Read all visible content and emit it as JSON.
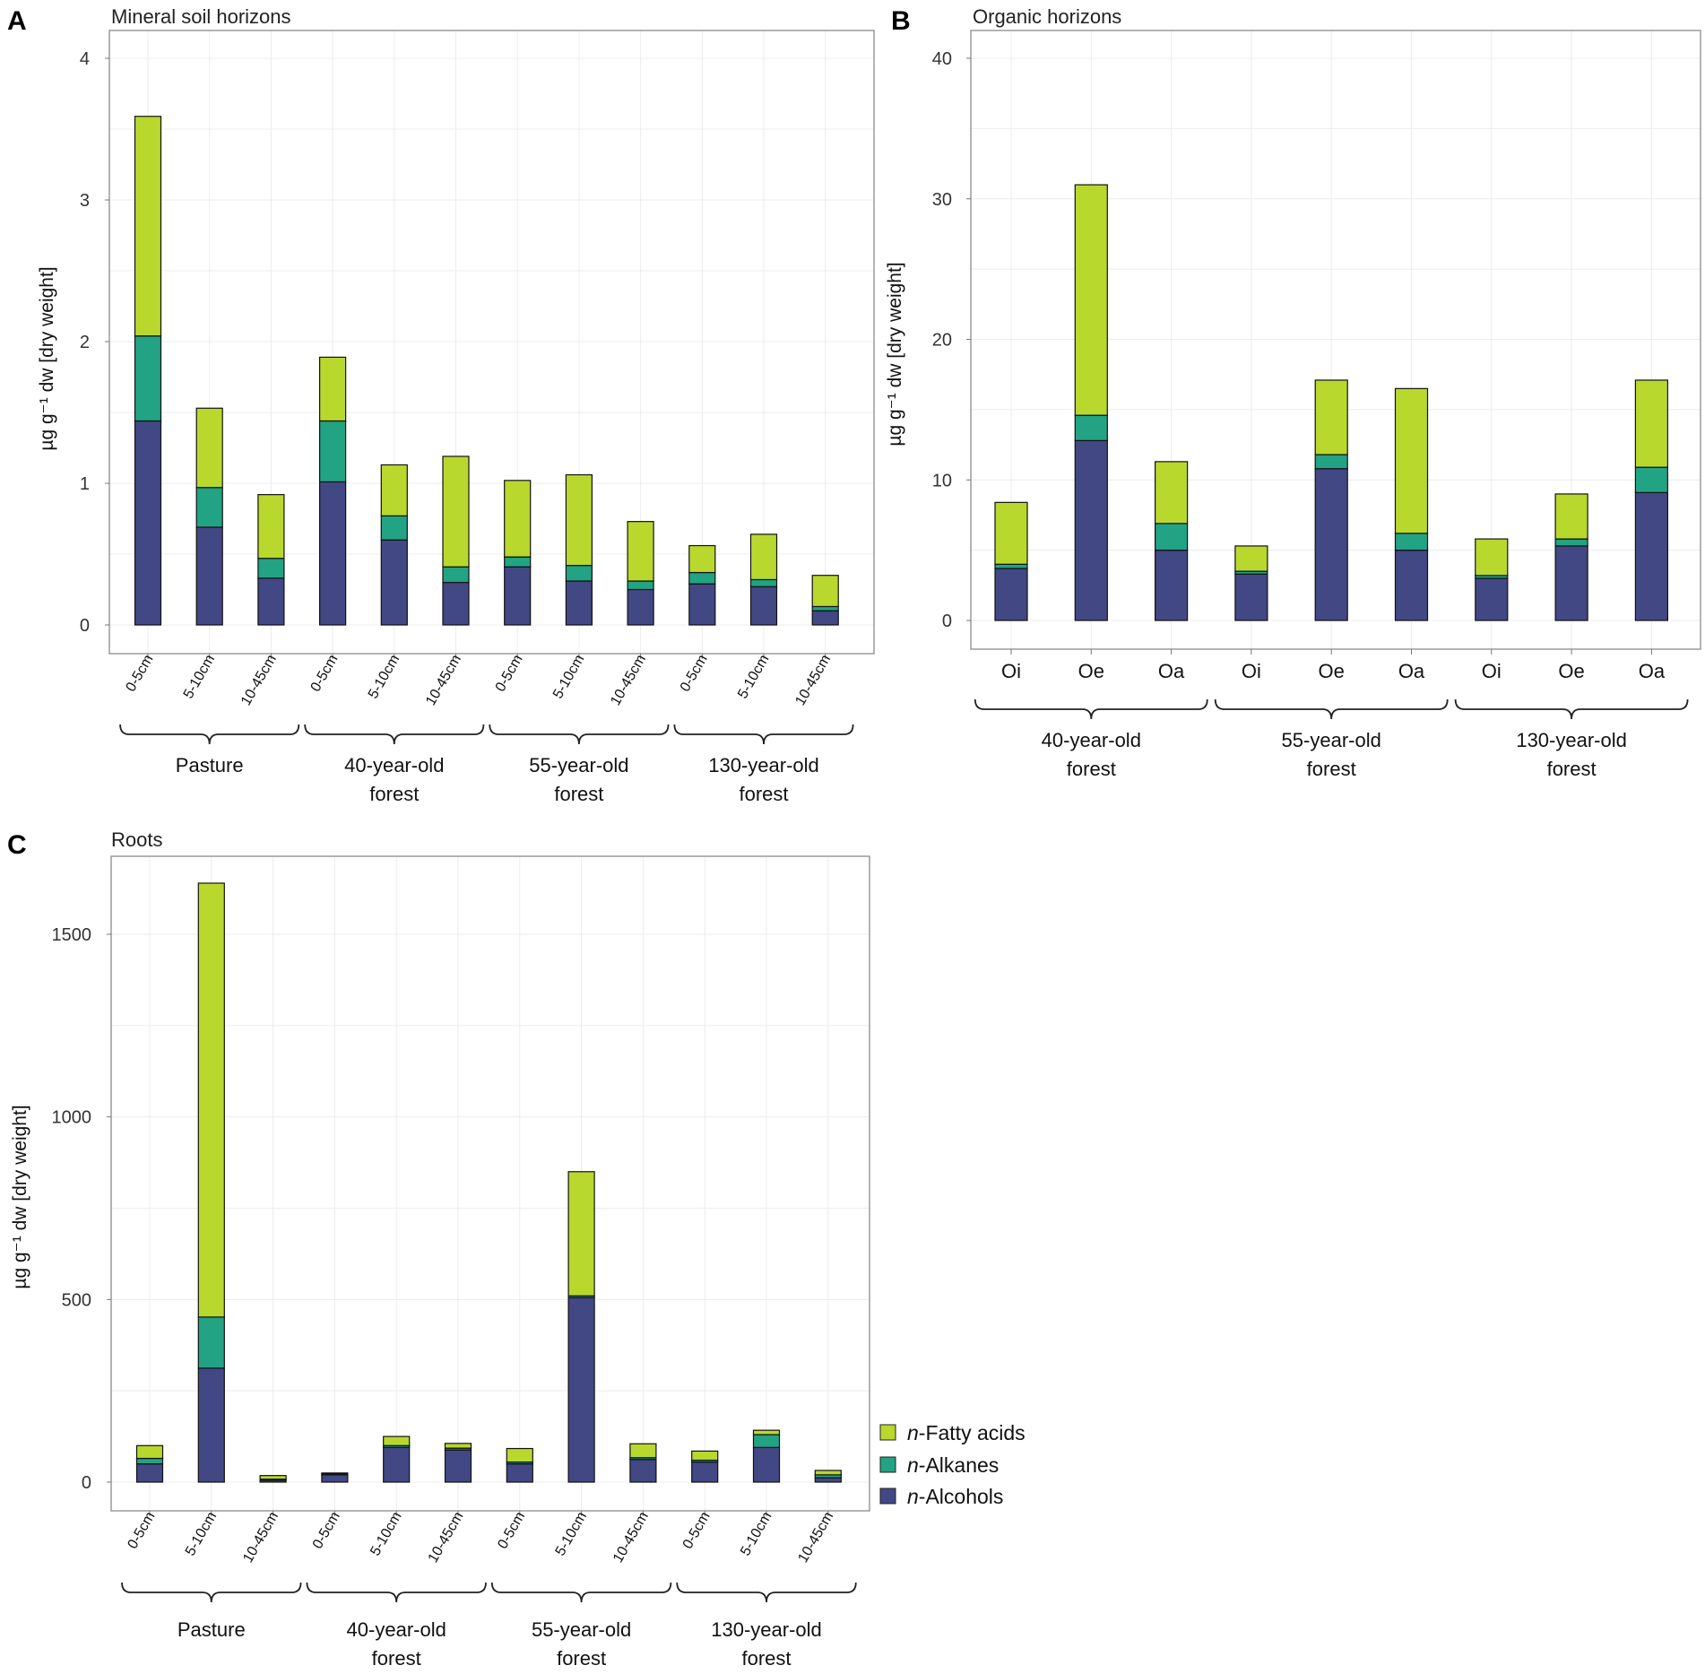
{
  "colors": {
    "fatty_acids": "#b8d82e",
    "alkanes": "#22a383",
    "alcohols": "#424884"
  },
  "legend": {
    "items": [
      {
        "prefix": "n",
        "name": "-Fatty acids",
        "color": "#b8d82e"
      },
      {
        "prefix": "n",
        "name": "-Alkanes",
        "color": "#22a383"
      },
      {
        "prefix": "n",
        "name": "-Alcohols",
        "color": "#424884"
      }
    ]
  },
  "chart_data": [
    {
      "panel": "A",
      "type": "bar",
      "stacked": true,
      "title": "Mineral soil horizons",
      "ylabel": "µg g⁻¹ dw [dry weight]",
      "ylim": [
        0,
        4.2
      ],
      "yticks": [
        0,
        1,
        2,
        3,
        4
      ],
      "categories": [
        "0-5cm",
        "5-10cm",
        "10-45cm",
        "0-5cm",
        "5-10cm",
        "10-45cm",
        "0-5cm",
        "5-10cm",
        "10-45cm",
        "0-5cm",
        "5-10cm",
        "10-45cm"
      ],
      "groups": [
        {
          "label": [
            "Pasture"
          ],
          "start": 0,
          "end": 2
        },
        {
          "label": [
            "40-year-old",
            "forest"
          ],
          "start": 3,
          "end": 5
        },
        {
          "label": [
            "55-year-old",
            "forest"
          ],
          "start": 6,
          "end": 8
        },
        {
          "label": [
            "130-year-old",
            "forest"
          ],
          "start": 9,
          "end": 11
        }
      ],
      "series": [
        {
          "name": "n-Alcohols",
          "values": [
            1.44,
            0.69,
            0.33,
            1.01,
            0.6,
            0.3,
            0.41,
            0.31,
            0.25,
            0.29,
            0.27,
            0.1
          ]
        },
        {
          "name": "n-Alkanes",
          "values": [
            0.6,
            0.28,
            0.14,
            0.43,
            0.17,
            0.11,
            0.07,
            0.11,
            0.06,
            0.08,
            0.05,
            0.03
          ]
        },
        {
          "name": "n-Fatty acids",
          "values": [
            1.55,
            0.56,
            0.45,
            0.45,
            0.36,
            0.78,
            0.54,
            0.64,
            0.42,
            0.19,
            0.32,
            0.22
          ]
        }
      ]
    },
    {
      "panel": "B",
      "type": "bar",
      "stacked": true,
      "title": "Organic horizons",
      "ylabel": "µg g⁻¹ dw [dry weight]",
      "ylim": [
        0,
        42
      ],
      "yticks": [
        0,
        10,
        20,
        30,
        40
      ],
      "categories": [
        "Oi",
        "Oe",
        "Oa",
        "Oi",
        "Oe",
        "Oa",
        "Oi",
        "Oe",
        "Oa"
      ],
      "groups": [
        {
          "label": [
            "40-year-old",
            "forest"
          ],
          "start": 0,
          "end": 2
        },
        {
          "label": [
            "55-year-old",
            "forest"
          ],
          "start": 3,
          "end": 5
        },
        {
          "label": [
            "130-year-old",
            "forest"
          ],
          "start": 6,
          "end": 8
        }
      ],
      "series": [
        {
          "name": "n-Alcohols",
          "values": [
            3.7,
            12.8,
            5.0,
            3.3,
            10.8,
            5.0,
            3.0,
            5.3,
            9.1
          ]
        },
        {
          "name": "n-Alkanes",
          "values": [
            0.3,
            1.8,
            1.9,
            0.2,
            1.0,
            1.2,
            0.2,
            0.5,
            1.8
          ]
        },
        {
          "name": "n-Fatty acids",
          "values": [
            4.4,
            16.4,
            4.4,
            1.8,
            5.3,
            10.3,
            2.6,
            3.2,
            6.2
          ]
        }
      ]
    },
    {
      "panel": "C",
      "type": "bar",
      "stacked": true,
      "title": "Roots",
      "ylabel": "µg g⁻¹ dw [dry weight]",
      "ylim": [
        0,
        1720
      ],
      "yticks": [
        0,
        500,
        1000,
        1500
      ],
      "categories": [
        "0-5cm",
        "5-10cm",
        "10-45cm",
        "0-5cm",
        "5-10cm",
        "10-45cm",
        "0-5cm",
        "5-10cm",
        "10-45cm",
        "0-5cm",
        "5-10cm",
        "10-45cm"
      ],
      "groups": [
        {
          "label": [
            "Pasture"
          ],
          "start": 0,
          "end": 2
        },
        {
          "label": [
            "40-year-old",
            "forest"
          ],
          "start": 3,
          "end": 5
        },
        {
          "label": [
            "55-year-old",
            "forest"
          ],
          "start": 6,
          "end": 8
        },
        {
          "label": [
            "130-year-old",
            "forest"
          ],
          "start": 9,
          "end": 11
        }
      ],
      "series": [
        {
          "name": "n-Alcohols",
          "values": [
            50,
            312,
            5,
            20,
            95,
            88,
            50,
            505,
            62,
            55,
            95,
            12
          ]
        },
        {
          "name": "n-Alkanes",
          "values": [
            15,
            140,
            3,
            3,
            5,
            5,
            5,
            5,
            5,
            5,
            35,
            8
          ]
        },
        {
          "name": "n-Fatty acids",
          "values": [
            35,
            1188,
            10,
            2,
            25,
            13,
            37,
            340,
            38,
            25,
            12,
            12
          ]
        }
      ]
    }
  ]
}
